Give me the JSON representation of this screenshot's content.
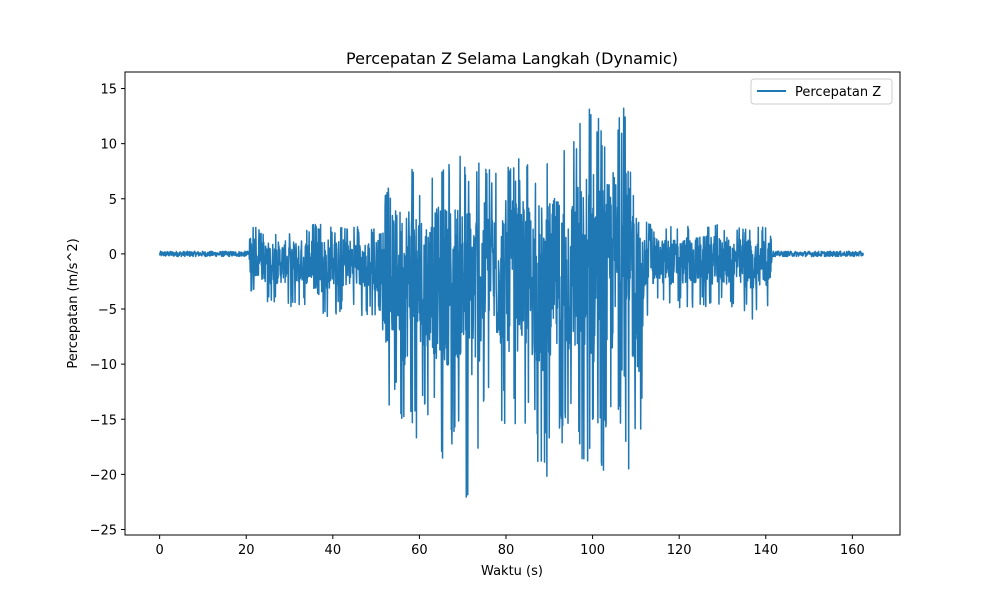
{
  "chart_data": {
    "type": "line",
    "title": "Percepatan Z Selama Langkah (Dynamic)",
    "xlabel": "Waktu (s)",
    "ylabel": "Percepatan (m/s^2)",
    "xlim": [
      -8,
      171
    ],
    "ylim": [
      -25.5,
      16.5
    ],
    "xticks": [
      0,
      20,
      40,
      60,
      80,
      100,
      120,
      140,
      160
    ],
    "yticks": [
      15,
      10,
      5,
      0,
      -5,
      -10,
      -15,
      -20,
      -25
    ],
    "ytick_labels": [
      "15",
      "10",
      "5",
      "0",
      "−5",
      "−10",
      "−15",
      "−20",
      "−25"
    ],
    "legend": {
      "position": "top-right"
    },
    "grid": false,
    "series": [
      {
        "name": "Percepatan Z",
        "color": "#1f77b4",
        "x_range": [
          0,
          162.5
        ],
        "envelope": {
          "x": [
            0,
            20.5,
            21,
            25,
            30,
            35,
            36,
            40,
            45,
            50,
            52,
            55,
            56,
            58,
            60,
            62,
            65,
            70,
            71,
            75,
            78,
            80,
            85,
            89,
            90,
            95,
            98,
            100,
            103,
            105,
            108,
            110,
            111,
            112,
            115,
            120,
            125,
            130,
            135,
            140,
            141,
            141.5,
            150,
            160,
            162.5
          ],
          "upper": [
            0.3,
            0.3,
            2.7,
            2.0,
            2.2,
            2.5,
            3.0,
            2.5,
            2.5,
            2.5,
            5.5,
            7.5,
            8.0,
            9.7,
            7.0,
            7.0,
            8.0,
            9.0,
            8.5,
            8.5,
            8.0,
            9.0,
            8.5,
            8.5,
            9.0,
            10.0,
            13.0,
            14.8,
            11.0,
            14.7,
            14.0,
            13.0,
            3.0,
            3.0,
            2.5,
            2.5,
            3.0,
            2.8,
            2.5,
            2.5,
            2.5,
            0.3,
            0.3,
            0.3,
            0.3
          ],
          "lower": [
            -0.3,
            -0.3,
            -3.5,
            -5.0,
            -4.8,
            -5.0,
            -7.0,
            -5.5,
            -5.5,
            -6.0,
            -15.3,
            -12.0,
            -19.3,
            -16.0,
            -18.3,
            -15.0,
            -19.0,
            -17.0,
            -23.5,
            -16.0,
            -15.0,
            -16.5,
            -16.0,
            -21.2,
            -19.0,
            -17.0,
            -19.0,
            -19.5,
            -20.0,
            -16.0,
            -21.5,
            -18.0,
            -20.6,
            -6.0,
            -5.0,
            -5.0,
            -5.0,
            -5.0,
            -6.0,
            -6.0,
            -6.0,
            -0.3,
            -0.3,
            -0.3,
            -0.3
          ]
        }
      }
    ]
  }
}
